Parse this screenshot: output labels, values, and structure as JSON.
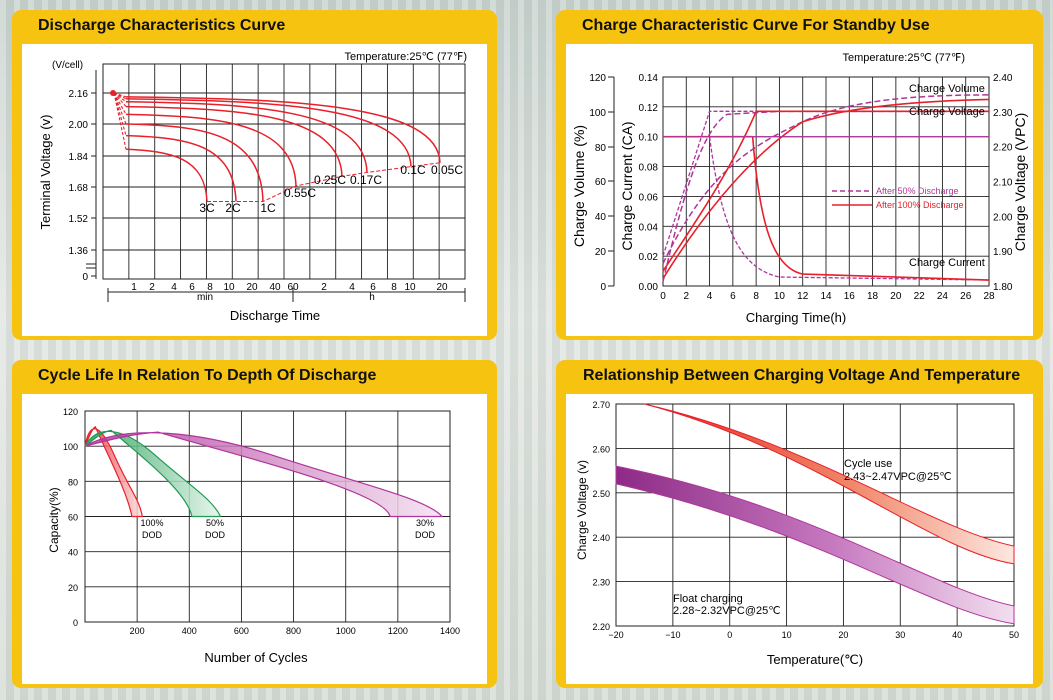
{
  "colors": {
    "panel": "#f6c311",
    "grid": "#222222",
    "red": "#e8202a",
    "purple": "#b0359a",
    "green": "#1f9a52"
  },
  "chart_data": [
    {
      "type": "line",
      "title": "Discharge Characteristics Curve",
      "note": "Temperature:25℃ (77℉)",
      "xlabel": "Discharge  Time",
      "ylabel": "Terminal  Voltage  (v)",
      "yunit": "(V/cell)",
      "yticks": [
        "2.16",
        "2.00",
        "1.84",
        "1.68",
        "1.52",
        "1.36",
        "0"
      ],
      "xticks": [
        "1",
        "2",
        "4",
        "6",
        "8",
        "10",
        "20",
        "40",
        "60",
        "2",
        "4",
        "6",
        "8",
        "10",
        "20"
      ],
      "xgroups": [
        "min",
        "h"
      ],
      "series": [
        {
          "name": "3C",
          "end_voltage": 1.6
        },
        {
          "name": "2C",
          "end_voltage": 1.6
        },
        {
          "name": "1C",
          "end_voltage": 1.6
        },
        {
          "name": "0.55C",
          "end_voltage": 1.68
        },
        {
          "name": "0.25C",
          "end_voltage": 1.73
        },
        {
          "name": "0.17C",
          "end_voltage": 1.75
        },
        {
          "name": "0.1C",
          "end_voltage": 1.78
        },
        {
          "name": "0.05C",
          "end_voltage": 1.8
        }
      ]
    },
    {
      "type": "line",
      "title": "Charge Characteristic Curve For Standby Use",
      "note": "Temperature:25℃ (77℉)",
      "xlabel": "Charging Time(h)",
      "ylabel_left1": "Charge Volume (%)",
      "ylabel_left2": "Charge Current (CA)",
      "ylabel_right": "Charge Voltage (VPC)",
      "xticks": [
        "0",
        "2",
        "4",
        "6",
        "8",
        "10",
        "12",
        "14",
        "16",
        "18",
        "20",
        "22",
        "24",
        "26",
        "28"
      ],
      "yticks_volume": [
        "120",
        "100",
        "80",
        "60",
        "40",
        "20",
        "0"
      ],
      "yticks_current": [
        "0.14",
        "0.12",
        "0.10",
        "0.08",
        "0.06",
        "0.04",
        "0.02",
        "0.00"
      ],
      "yticks_voltage": [
        "2.40",
        "2.30",
        "2.20",
        "2.10",
        "2.00",
        "1.90",
        "1.80"
      ],
      "labels": [
        "Charge Volume",
        "Charge Voltage",
        "Charge Current"
      ],
      "legend": [
        "After 50% Discharge",
        "After 100% Discharge"
      ]
    },
    {
      "type": "line",
      "title": "Cycle Life In Relation To Depth Of Discharge",
      "xlabel": "Number of Cycles",
      "ylabel": "Capacity(%)",
      "xticks": [
        "200",
        "400",
        "600",
        "800",
        "1000",
        "1200",
        "1400"
      ],
      "yticks": [
        "120",
        "100",
        "80",
        "60",
        "40",
        "20",
        "0"
      ],
      "series": [
        {
          "name": "100% DOD",
          "line1": "100%",
          "line2": "DOD",
          "end_cycles": 220
        },
        {
          "name": "50% DOD",
          "line1": "50%",
          "line2": "DOD",
          "end_cycles": 520
        },
        {
          "name": "30% DOD",
          "line1": "30%",
          "line2": "DOD",
          "end_cycles": 1370
        }
      ]
    },
    {
      "type": "area",
      "title": "Relationship Between Charging Voltage And Temperature",
      "xlabel": "Temperature(℃)",
      "ylabel": "Charge Voltage  (v)",
      "xticks": [
        "−20",
        "−10",
        "0",
        "10",
        "20",
        "30",
        "40",
        "50"
      ],
      "yticks": [
        "2.70",
        "2.60",
        "2.50",
        "2.40",
        "2.30",
        "2.20"
      ],
      "series": [
        {
          "name": "Cycle use",
          "line1": "Cycle use",
          "line2": "2.43~2.47VPC@25℃",
          "band_at_25C": [
            2.43,
            2.47
          ]
        },
        {
          "name": "Float charging",
          "line1": "Float charging",
          "line2": "2.28~2.32VPC@25℃",
          "band_at_25C": [
            2.28,
            2.32
          ]
        }
      ]
    }
  ]
}
